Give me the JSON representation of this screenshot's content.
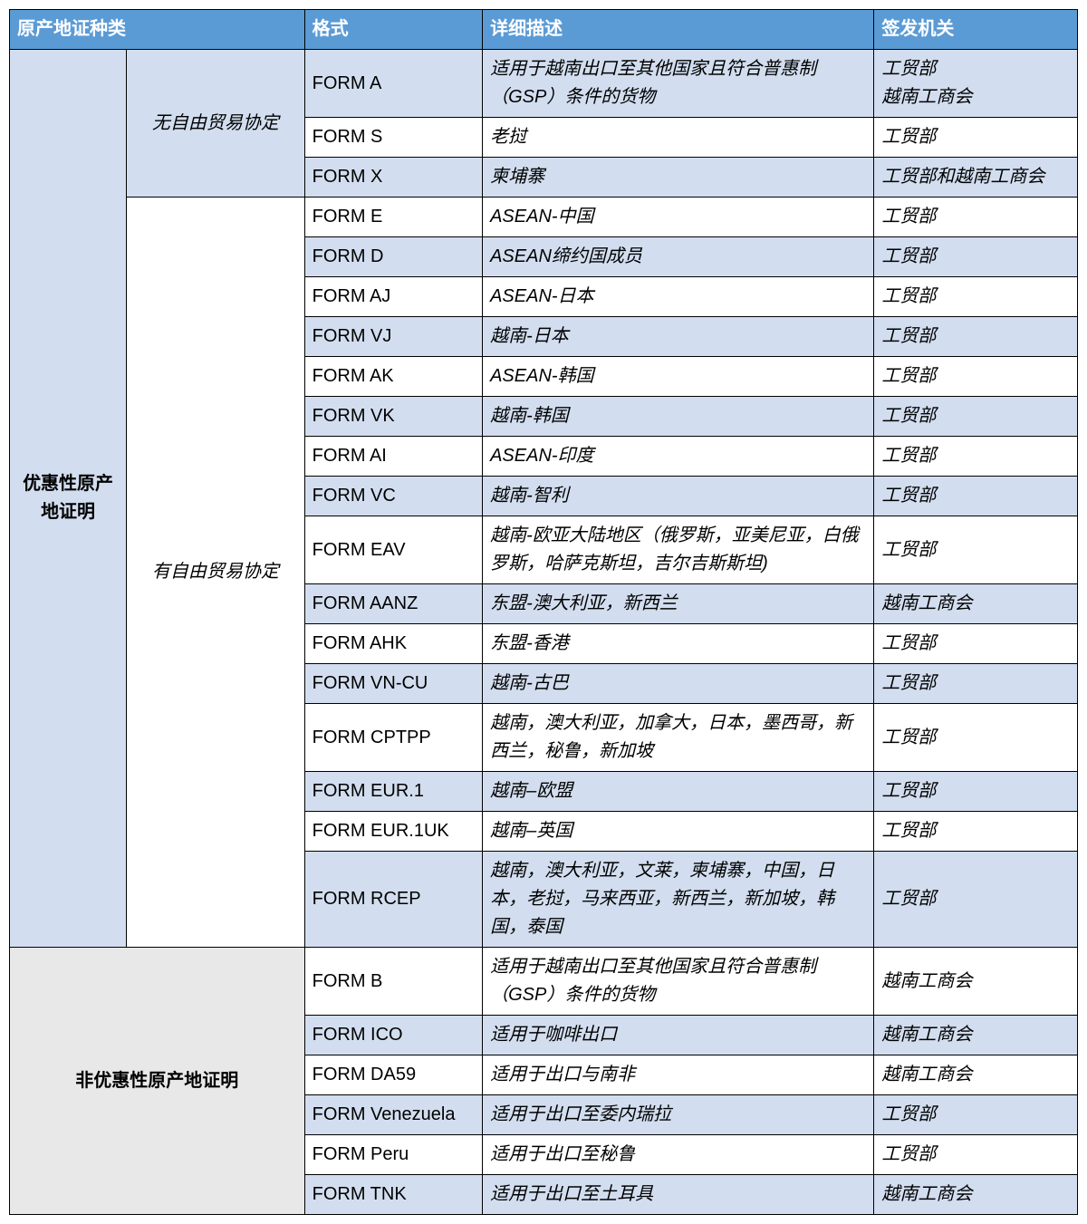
{
  "colors": {
    "header_bg": "#5b9bd5",
    "header_fg": "#ffffff",
    "row_blue": "#d2deef",
    "row_white": "#ffffff",
    "row_grey": "#e8e8e8",
    "border": "#000000"
  },
  "headers": {
    "category": "原产地证种类",
    "format": "格式",
    "description": "详细描述",
    "authority": "签发机关"
  },
  "categories": {
    "preferential": "优惠性原产地证明",
    "nonpreferential": "非优惠性原产地证明"
  },
  "subcategories": {
    "nofta": "无自由贸易协定",
    "fta": "有自由贸易协定"
  },
  "rows": [
    {
      "fmt": "FORM A",
      "desc": "适用于越南出口至其他国家且符合普惠制（GSP）条件的货物",
      "auth": "工贸部\n越南工商会"
    },
    {
      "fmt": "FORM S",
      "desc": "老挝",
      "auth": "工贸部"
    },
    {
      "fmt": "FORM X",
      "desc": "柬埔寨",
      "auth": "工贸部和越南工商会"
    },
    {
      "fmt": "FORM E",
      "desc": "ASEAN-中国",
      "auth": "工贸部"
    },
    {
      "fmt": "FORM D",
      "desc": "ASEAN缔约国成员",
      "auth": "工贸部"
    },
    {
      "fmt": "FORM AJ",
      "desc": "ASEAN-日本",
      "auth": "工贸部"
    },
    {
      "fmt": "FORM VJ",
      "desc": "越南-日本",
      "auth": "工贸部"
    },
    {
      "fmt": "FORM AK",
      "desc": "ASEAN-韩国",
      "auth": "工贸部"
    },
    {
      "fmt": "FORM VK",
      "desc": "越南-韩国",
      "auth": "工贸部"
    },
    {
      "fmt": "FORM AI",
      "desc": "ASEAN-印度",
      "auth": "工贸部"
    },
    {
      "fmt": "FORM VC",
      "desc": "越南-智利",
      "auth": "工贸部"
    },
    {
      "fmt": "FORM EAV",
      "desc": "越南-欧亚大陆地区（俄罗斯，亚美尼亚，白俄罗斯，哈萨克斯坦，吉尔吉斯斯坦)",
      "auth": "工贸部"
    },
    {
      "fmt": "FORM AANZ",
      "desc": "东盟-澳大利亚，新西兰",
      "auth": "越南工商会"
    },
    {
      "fmt": "FORM AHK",
      "desc": "东盟-香港",
      "auth": "工贸部"
    },
    {
      "fmt": "FORM VN-CU",
      "desc": "越南-古巴",
      "auth": "工贸部"
    },
    {
      "fmt": "FORM CPTPP",
      "desc": "越南，澳大利亚，加拿大，日本，墨西哥，新西兰，秘鲁，新加坡",
      "auth": "工贸部"
    },
    {
      "fmt": "FORM EUR.1",
      "desc": "越南–欧盟",
      "auth": "工贸部"
    },
    {
      "fmt": "FORM EUR.1UK",
      "desc": "越南–英国",
      "auth": "工贸部"
    },
    {
      "fmt": "FORM RCEP",
      "desc": "越南，澳大利亚，文莱，柬埔寨，中国，日本，老挝，马来西亚，新西兰，新加坡，韩国，泰国",
      "auth": "工贸部"
    },
    {
      "fmt": "FORM B",
      "desc": "适用于越南出口至其他国家且符合普惠制（GSP）条件的货物",
      "auth": "越南工商会"
    },
    {
      "fmt": "FORM ICO",
      "desc": "适用于咖啡出口",
      "auth": "越南工商会"
    },
    {
      "fmt": "FORM DA59",
      "desc": "适用于出口与南非",
      "auth": "越南工商会"
    },
    {
      "fmt": "FORM Venezuela",
      "desc": "适用于出口至委内瑞拉",
      "auth": "工贸部"
    },
    {
      "fmt": "FORM Peru",
      "desc": "适用于出口至秘鲁",
      "auth": "工贸部"
    },
    {
      "fmt": "FORM TNK",
      "desc": "适用于出口至土耳具",
      "auth": "越南工商会"
    }
  ]
}
